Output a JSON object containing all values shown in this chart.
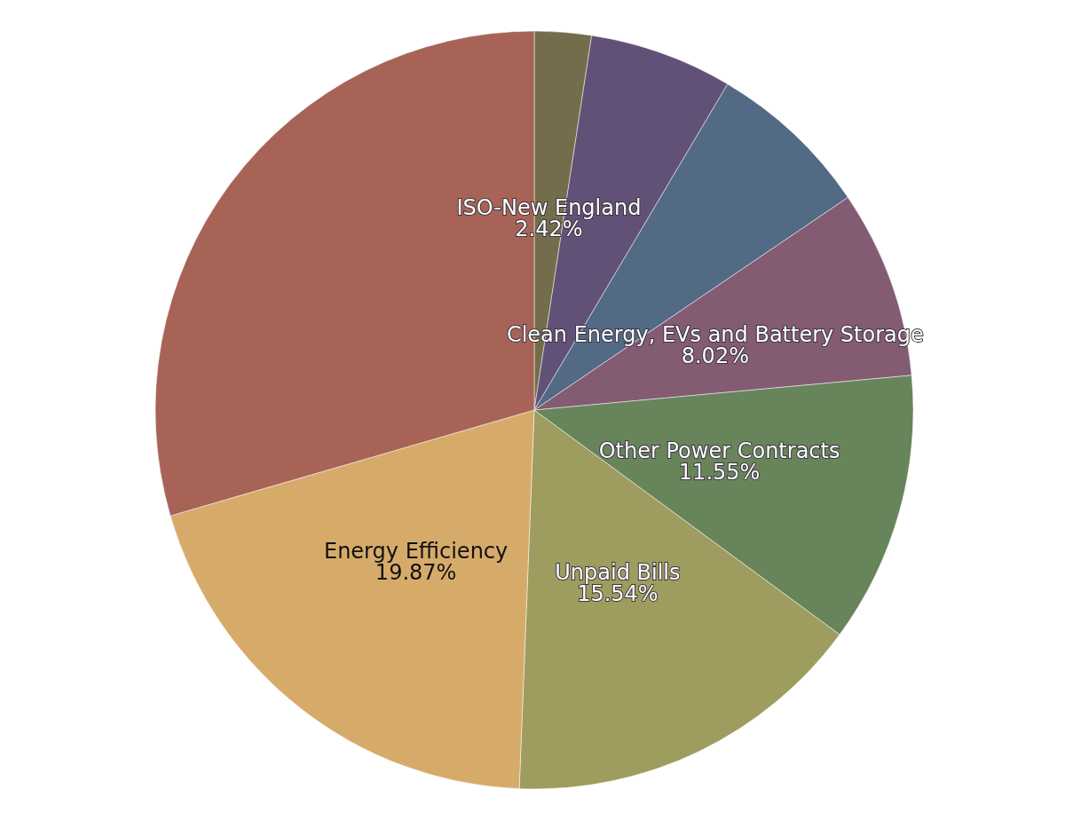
{
  "chart_data": {
    "type": "pie",
    "categories": [
      "ISO-New England",
      null,
      null,
      "Clean Energy, EVs and Battery Storage",
      "Other Power Contracts",
      "Unpaid Bills",
      "Energy Efficiency",
      null
    ],
    "values": [
      2.42,
      6.1,
      7.0,
      8.02,
      11.55,
      15.54,
      19.87,
      29.5
    ],
    "value_labels": [
      "2.42%",
      null,
      null,
      "8.02%",
      "11.55%",
      "15.54%",
      "19.87%",
      null
    ],
    "colors": [
      "#736d4b",
      "#625177",
      "#526a83",
      "#835b73",
      "#68845b",
      "#9e9c5e",
      "#d6ab6a",
      "#a86357"
    ]
  }
}
